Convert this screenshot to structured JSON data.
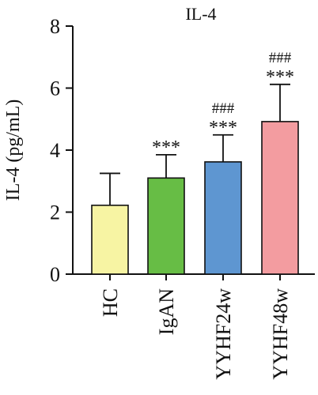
{
  "chart_data": {
    "type": "bar",
    "title": "IL-4",
    "ylabel": "IL-4 (pg/mL)",
    "xlabel": "",
    "ylim": [
      0,
      8
    ],
    "yticks": [
      0,
      2,
      4,
      6,
      8
    ],
    "categories": [
      "HC",
      "IgAN",
      "YYHF24w",
      "YYHF48w"
    ],
    "values": [
      2.22,
      3.1,
      3.62,
      4.92
    ],
    "errors": [
      1.03,
      0.75,
      0.87,
      1.2
    ],
    "significance": [
      {
        "stars": "",
        "hashes": ""
      },
      {
        "stars": "***",
        "hashes": ""
      },
      {
        "stars": "***",
        "hashes": "###"
      },
      {
        "stars": "***",
        "hashes": "###"
      }
    ],
    "colors": [
      "#f7f4a3",
      "#67bd45",
      "#5e96d1",
      "#f39ca0"
    ],
    "axis_color": "#111111",
    "grid": false
  }
}
